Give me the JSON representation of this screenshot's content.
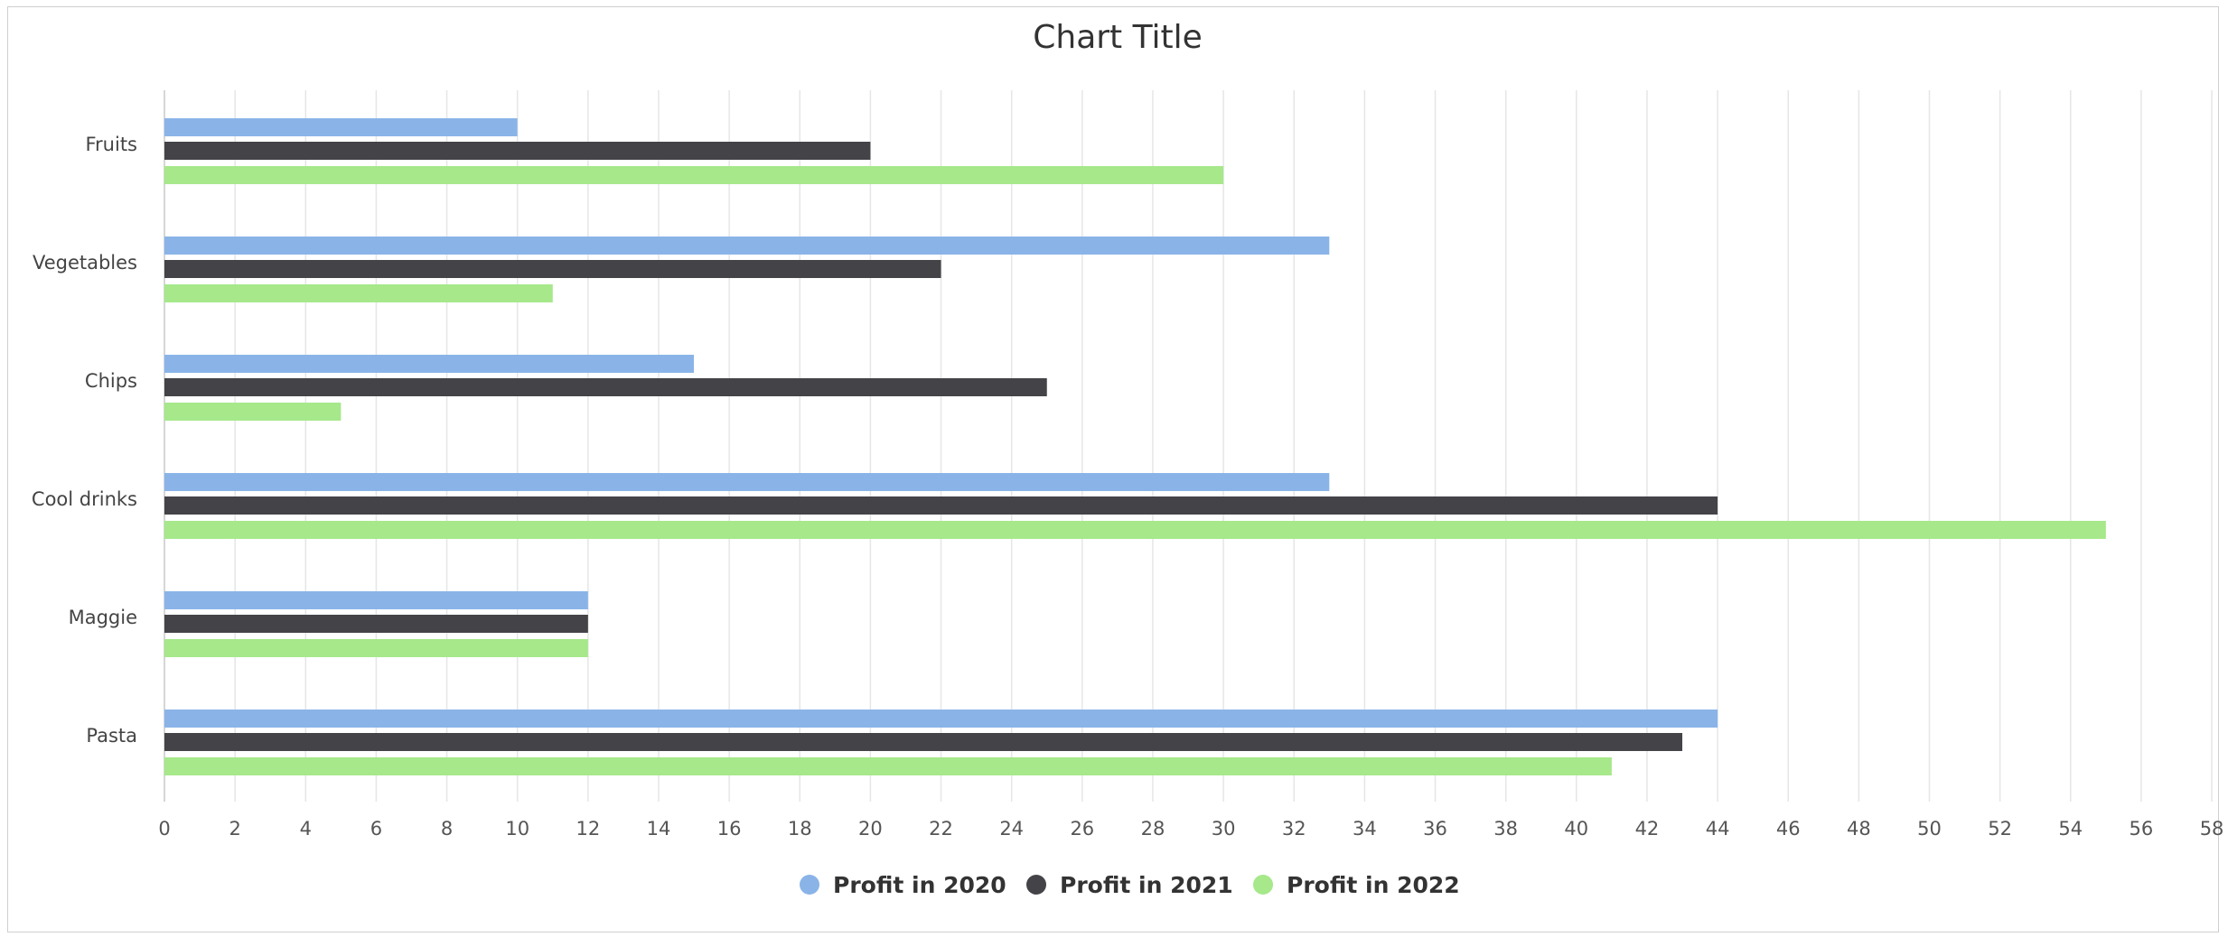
{
  "chart_data": {
    "type": "bar",
    "orientation": "horizontal",
    "title": "Chart Title",
    "categories": [
      "Fruits",
      "Vegetables",
      "Chips",
      "Cool drinks",
      "Maggie",
      "Pasta"
    ],
    "series": [
      {
        "name": "Profit in 2020",
        "color": "#8ab4e8",
        "values": [
          10,
          33,
          15,
          33,
          12,
          44
        ]
      },
      {
        "name": "Profit in 2021",
        "color": "#434348",
        "values": [
          20,
          22,
          25,
          44,
          12,
          43
        ]
      },
      {
        "name": "Profit in 2022",
        "color": "#a6e88a",
        "values": [
          30,
          11,
          5,
          55,
          12,
          41
        ]
      }
    ],
    "xlim": [
      0,
      58
    ],
    "x_ticks": [
      0,
      2,
      4,
      6,
      8,
      10,
      12,
      14,
      16,
      18,
      20,
      22,
      24,
      26,
      28,
      30,
      32,
      34,
      36,
      38,
      40,
      42,
      44,
      46,
      48,
      50,
      52,
      54,
      56,
      58
    ],
    "grid": "vertical",
    "legend_position": "bottom-center"
  }
}
